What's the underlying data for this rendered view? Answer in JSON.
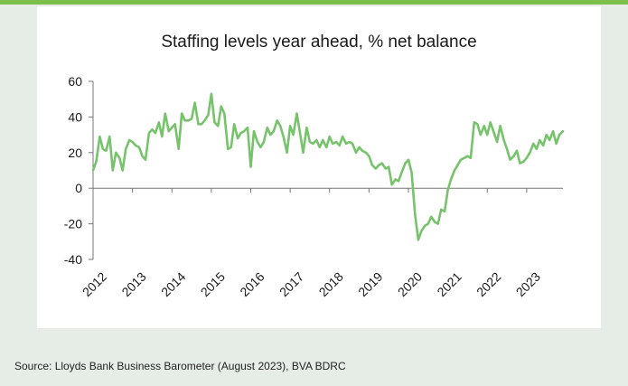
{
  "chart_data": {
    "type": "line",
    "title": "Staffing levels year ahead, % net balance",
    "xlabel": "",
    "ylabel": "",
    "ylim": [
      -40,
      60
    ],
    "yticks": [
      60,
      40,
      20,
      0,
      -20,
      -40
    ],
    "xlim": [
      2012,
      2023.92
    ],
    "xticks": [
      "2012",
      "2013",
      "2014",
      "2015",
      "2016",
      "2017",
      "2018",
      "2019",
      "2020",
      "2021",
      "2022",
      "2023"
    ],
    "grid": false,
    "legend": "none",
    "series": [
      {
        "color": "#77c36c",
        "x": [
          2012.0,
          2012.08,
          2012.17,
          2012.25,
          2012.33,
          2012.42,
          2012.5,
          2012.58,
          2012.67,
          2012.75,
          2012.83,
          2012.92,
          2013.0,
          2013.08,
          2013.17,
          2013.25,
          2013.33,
          2013.42,
          2013.5,
          2013.58,
          2013.67,
          2013.75,
          2013.83,
          2013.92,
          2014.0,
          2014.08,
          2014.17,
          2014.25,
          2014.33,
          2014.42,
          2014.5,
          2014.58,
          2014.67,
          2014.75,
          2014.83,
          2014.92,
          2015.0,
          2015.08,
          2015.17,
          2015.25,
          2015.33,
          2015.42,
          2015.5,
          2015.58,
          2015.67,
          2015.75,
          2015.83,
          2015.92,
          2016.0,
          2016.08,
          2016.17,
          2016.25,
          2016.33,
          2016.42,
          2016.5,
          2016.58,
          2016.67,
          2016.75,
          2016.83,
          2016.92,
          2017.0,
          2017.08,
          2017.17,
          2017.25,
          2017.33,
          2017.42,
          2017.5,
          2017.58,
          2017.67,
          2017.75,
          2017.83,
          2017.92,
          2018.0,
          2018.08,
          2018.17,
          2018.25,
          2018.33,
          2018.42,
          2018.5,
          2018.58,
          2018.67,
          2018.75,
          2018.83,
          2018.92,
          2019.0,
          2019.08,
          2019.17,
          2019.25,
          2019.33,
          2019.42,
          2019.5,
          2019.58,
          2019.67,
          2019.75,
          2019.83,
          2019.92,
          2020.0,
          2020.08,
          2020.17,
          2020.25,
          2020.33,
          2020.42,
          2020.5,
          2020.58,
          2020.67,
          2020.75,
          2020.83,
          2020.92,
          2021.0,
          2021.08,
          2021.17,
          2021.25,
          2021.33,
          2021.42,
          2021.5,
          2021.58,
          2021.67,
          2021.75,
          2021.83,
          2021.92,
          2022.0,
          2022.08,
          2022.17,
          2022.25,
          2022.33,
          2022.42,
          2022.5,
          2022.58,
          2022.67,
          2022.75,
          2022.83,
          2022.92,
          2023.0,
          2023.08,
          2023.17,
          2023.25,
          2023.33,
          2023.42,
          2023.5,
          2023.58,
          2023.67,
          2023.75,
          2023.83,
          2023.92
        ],
        "values": [
          10,
          15,
          29,
          22,
          21,
          29,
          10,
          20,
          17,
          10,
          22,
          27,
          26,
          24,
          23,
          18,
          16,
          31,
          33,
          31,
          37,
          29,
          42,
          32,
          34,
          36,
          22,
          42,
          38,
          38,
          39,
          48,
          36,
          36,
          38,
          41,
          53,
          37,
          35,
          46,
          42,
          22,
          23,
          36,
          28,
          31,
          32,
          34,
          12,
          32,
          26,
          23,
          26,
          34,
          30,
          32,
          38,
          35,
          29,
          20,
          35,
          30,
          42,
          31,
          20,
          34,
          26,
          25,
          27,
          23,
          27,
          23,
          29,
          25,
          26,
          24,
          29,
          25,
          26,
          25,
          20,
          23,
          21,
          20,
          18,
          13,
          11,
          13,
          14,
          11,
          12,
          2,
          5,
          4,
          9,
          14,
          16,
          9,
          -15,
          -29,
          -24,
          -21,
          -20,
          -16,
          -19,
          -20,
          -12,
          -13,
          -1,
          5,
          10,
          13,
          16,
          17,
          18,
          17,
          37,
          36,
          30,
          35,
          30,
          37,
          31,
          26,
          35,
          27,
          22,
          16,
          18,
          21,
          14,
          15,
          17,
          20,
          25,
          22,
          27,
          24,
          30,
          27,
          32,
          25,
          30,
          32
        ]
      }
    ]
  },
  "source": "Source: Lloyds Bank Business Barometer (August 2023), BVA BDRC"
}
